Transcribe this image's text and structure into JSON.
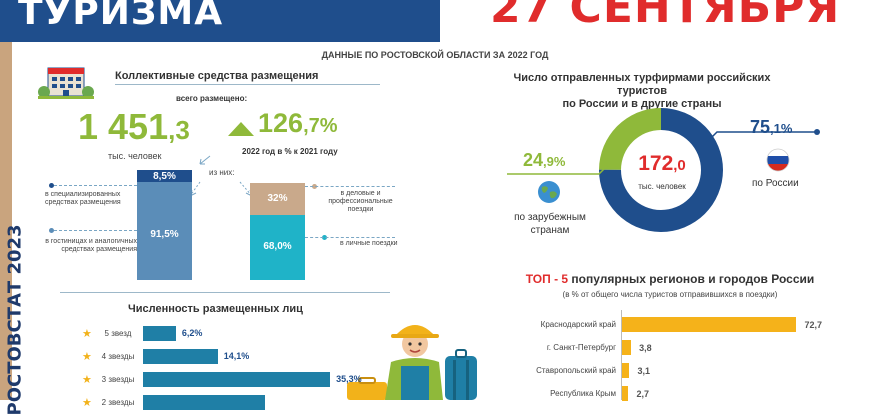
{
  "header": {
    "title": "ТУРИЗМА",
    "date": "27 СЕНТЯБРЯ"
  },
  "sidebar": {
    "source": "РОСТОВСТАТ 2023"
  },
  "subtitle": "ДАННЫЕ ПО РОСТОВСКОЙ ОБЛАСТИ ЗА 2022 ГОД",
  "accommodation": {
    "title": "Коллективные средства размещения",
    "total_label": "всего размещено:",
    "total_int": "1 451",
    "total_dec": ",3",
    "total_unit": "тыс. человек",
    "growth_int": "126",
    "growth_dec": ",7%",
    "growth_label": "2022 год в % к 2021 году",
    "of_them": "из них:",
    "bar1": {
      "top_value": "8,5%",
      "bottom_value": "91,5%",
      "top_label": "в специализированных средствах размещения",
      "bottom_label": "в гостиницах и аналогичных средствах размещения"
    },
    "bar2": {
      "top_value": "32%",
      "bottom_value": "68,0%",
      "top_label": "в деловые и профессиональные поездки",
      "bottom_label": "в личные поездки"
    },
    "colors": {
      "green": "#8fb93a",
      "navy": "#1f4e8c",
      "steel": "#5b8db8",
      "tan": "#c9a98b",
      "teal": "#1fb3c8"
    }
  },
  "hotel_stars": {
    "title": "Численность размещенных лиц",
    "rows": [
      {
        "label": "5 звезд",
        "value": "6,2%"
      },
      {
        "label": "4 звезды",
        "value": "14,1%"
      },
      {
        "label": "3 звезды",
        "value": "35,3%"
      },
      {
        "label": "2 звезды",
        "value": ""
      }
    ]
  },
  "tourists": {
    "title_line1": "Число отправленных турфирмами российских туристов",
    "title_line2": "по России и в другие страны",
    "total_int": "172",
    "total_dec": ",0",
    "total_unit": "тыс. человек",
    "abroad_int": "24",
    "abroad_dec": ",9%",
    "abroad_label_line1": "по зарубежным",
    "abroad_label_line2": "странам",
    "russia_int": "75",
    "russia_dec": ",1%",
    "russia_label": "по России",
    "icons": {
      "abroad": "globe-icon",
      "russia": "russia-flag-icon"
    }
  },
  "top_regions": {
    "title_red": "ТОП - 5",
    "title_rest": "популярных регионов и городов России",
    "subtitle": "(в % от общего числа туристов отправившихся в поездки)",
    "rows": [
      {
        "label": "Краснодарский край",
        "value": "72,7"
      },
      {
        "label": "г. Санкт-Петербург",
        "value": "3,8"
      },
      {
        "label": "Ставропольский  край",
        "value": "3,1"
      },
      {
        "label": "Республика Крым",
        "value": "2,7"
      }
    ]
  },
  "chart_data": [
    {
      "type": "pie",
      "categories": [
        "по России",
        "по зарубежным странам"
      ],
      "values": [
        75.1,
        24.9
      ],
      "title": "Число отправленных турфирмами российских туристов по России и в другие страны"
    },
    {
      "type": "bar",
      "categories": [
        "5 звезд",
        "4 звезды",
        "3 звезды"
      ],
      "values": [
        6.2,
        14.1,
        35.3
      ],
      "title": "Численность размещенных лиц"
    },
    {
      "type": "bar",
      "categories": [
        "Краснодарский край",
        "г. Санкт-Петербург",
        "Ставропольский  край",
        "Республика Крым"
      ],
      "values": [
        72.7,
        3.8,
        3.1,
        2.7
      ],
      "title": "ТОП - 5 популярных регионов и городов России"
    }
  ]
}
